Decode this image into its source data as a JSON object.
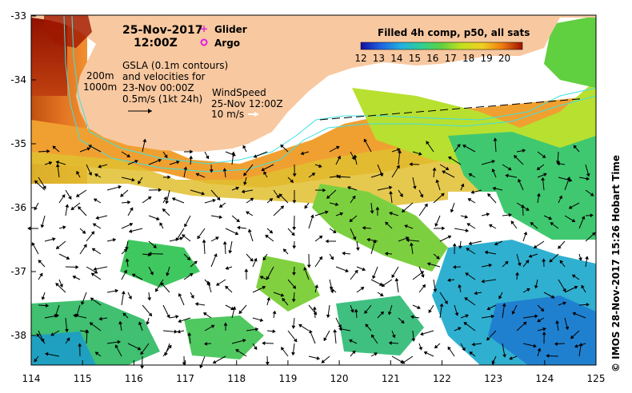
{
  "title": {
    "date": "25-Nov-2017",
    "time": "12:00Z"
  },
  "legend_markers": [
    {
      "label": "Glider",
      "color": "#e020e0",
      "symbol": "plus"
    },
    {
      "label": "Argo",
      "color": "#e020e0",
      "symbol": "circle"
    }
  ],
  "gsla_note": {
    "line1": "GSLA (0.1m contours)",
    "line2": "and velocities for",
    "line3": "23-Nov 00:00Z",
    "line4": "0.5m/s (1kt 24h)"
  },
  "depth_labels": [
    "200m",
    "1000m"
  ],
  "wind_note": {
    "line1": "WindSpeed",
    "line2": "25-Nov 12:00Z",
    "line3": "10 m/s"
  },
  "colorbar": {
    "title": "Filled 4h comp, p50, all sats",
    "ticks": [
      "12",
      "13",
      "14",
      "15",
      "16",
      "17",
      "18",
      "19",
      "20"
    ],
    "min": 12,
    "max": 21
  },
  "axes": {
    "x_ticks": [
      "114",
      "115",
      "116",
      "117",
      "118",
      "119",
      "120",
      "121",
      "122",
      "123",
      "124",
      "125"
    ],
    "y_ticks": [
      "-33",
      "-34",
      "-35",
      "-36",
      "-37",
      "-38"
    ]
  },
  "credit": "© IMOS 28-Nov-2017 15:26 Hobart Time",
  "colors": {
    "land": "#f8c8a0",
    "contour": "#40e0e0",
    "marker": "#e020e0"
  }
}
